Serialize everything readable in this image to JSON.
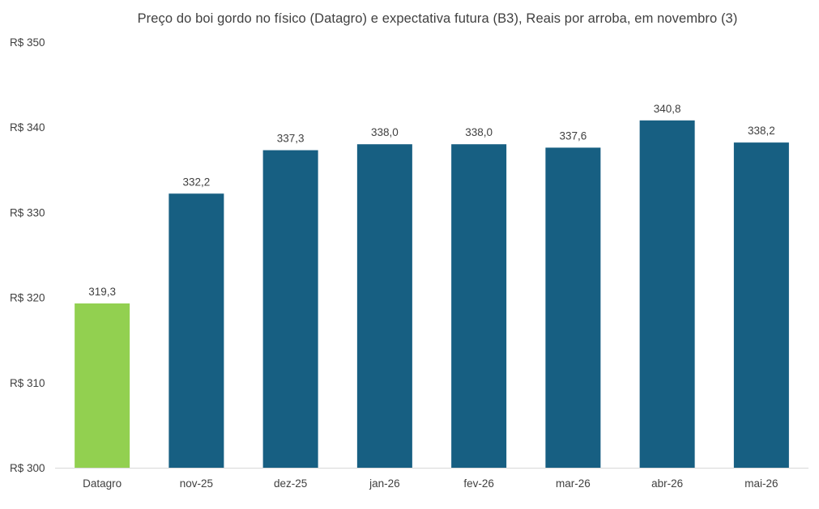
{
  "chart_data": {
    "type": "bar",
    "title": "Preço do boi gordo no físico (Datagro)  e expectativa futura (B3), Reais por arroba, em novembro (3)",
    "xlabel": "",
    "ylabel": "",
    "categories": [
      "Datagro",
      "nov-25",
      "dez-25",
      "jan-26",
      "fev-26",
      "mar-26",
      "abr-26",
      "mai-26"
    ],
    "values": [
      319.3,
      332.2,
      337.3,
      338.0,
      338.0,
      337.6,
      340.8,
      338.2
    ],
    "value_labels": [
      "319,3",
      "332,2",
      "337,3",
      "338,0",
      "338,0",
      "337,6",
      "340,8",
      "338,2"
    ],
    "ylim": [
      300,
      350
    ],
    "yticks": [
      300,
      310,
      320,
      330,
      340,
      350
    ],
    "ytick_labels": [
      "R$ 300",
      "R$ 310",
      "R$ 320",
      "R$ 330",
      "R$ 340",
      "R$ 350"
    ],
    "grid": false,
    "legend": "none",
    "colors": {
      "highlight": "#92d050",
      "bars": "#175f82",
      "axis": "#d9d9d9",
      "text": "#404040"
    }
  }
}
